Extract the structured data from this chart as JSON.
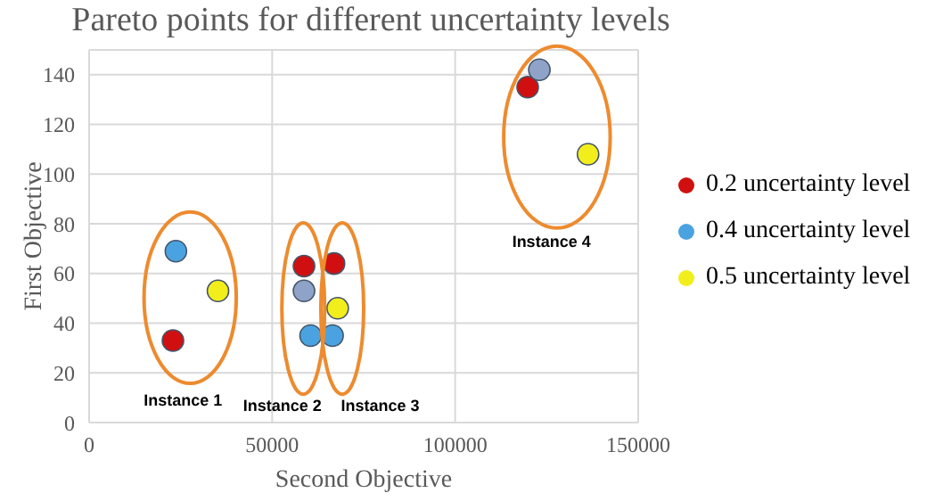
{
  "chart_data": {
    "type": "scatter",
    "title": "Pareto points for different uncertainty levels",
    "xlabel": "Second Objective",
    "ylabel": "First Objective",
    "series": [
      {
        "name": "0.2  uncertainty level",
        "color": "#d01010",
        "x": [
          22900,
          58700,
          66900,
          119800
        ],
        "values": [
          33,
          63,
          64,
          135
        ]
      },
      {
        "name": "0.4  uncertainty level",
        "color": "#4aa3e0",
        "x": [
          23700,
          60500,
          66500
        ],
        "values": [
          69,
          35,
          35
        ]
      },
      {
        "color": "#8fa3c8",
        "x": [
          58700,
          123000
        ],
        "values": [
          53,
          142
        ]
      },
      {
        "name": "0.5  uncertainty level",
        "color": "#f2ee1c",
        "x": [
          35200,
          67900,
          136300
        ],
        "values": [
          53,
          46,
          108
        ]
      }
    ],
    "annotations": [
      "Instance 1",
      "Instance 2",
      "Instance 3",
      "Instance 4"
    ],
    "xlim": [
      0,
      150000
    ],
    "xticks": [
      0,
      50000,
      100000,
      150000
    ],
    "ylim": [
      0,
      150
    ],
    "yticks": [
      0,
      20,
      40,
      60,
      80,
      100,
      120,
      140
    ],
    "grid": true,
    "legend": "right",
    "marker": "circle"
  }
}
